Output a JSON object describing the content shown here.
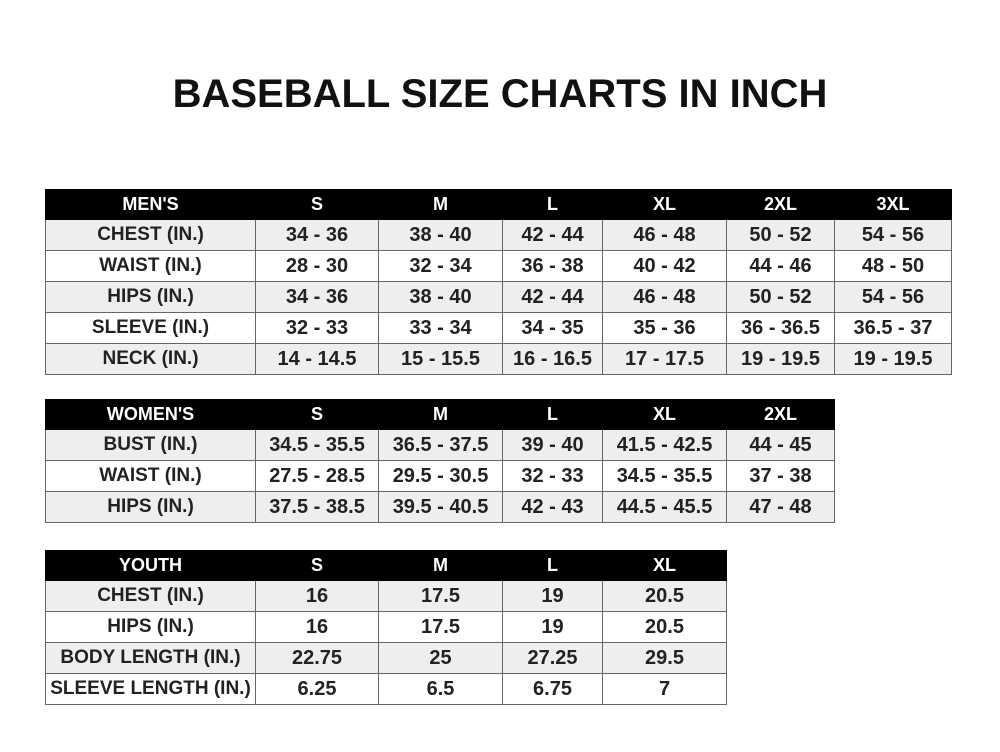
{
  "title": "BASEBALL SIZE CHARTS IN INCH",
  "colors": {
    "header_bg": "#000000",
    "header_text": "#ffffff",
    "alt_row": "#eeeeee"
  },
  "tables": {
    "men": {
      "headers": [
        "MEN'S",
        "S",
        "M",
        "L",
        "XL",
        "2XL",
        "3XL"
      ],
      "rows": [
        [
          "CHEST (IN.)",
          "34 - 36",
          "38 - 40",
          "42 - 44",
          "46 - 48",
          "50 - 52",
          "54 - 56"
        ],
        [
          "WAIST (IN.)",
          "28 - 30",
          "32 - 34",
          "36 - 38",
          "40 - 42",
          "44 - 46",
          "48 - 50"
        ],
        [
          "HIPS (IN.)",
          "34 - 36",
          "38 - 40",
          "42 - 44",
          "46 - 48",
          "50 - 52",
          "54 - 56"
        ],
        [
          "SLEEVE (IN.)",
          "32 - 33",
          "33 - 34",
          "34 - 35",
          "35 - 36",
          "36 - 36.5",
          "36.5 - 37"
        ],
        [
          "NECK (IN.)",
          "14 - 14.5",
          "15 - 15.5",
          "16 - 16.5",
          "17 - 17.5",
          "19 - 19.5",
          "19 - 19.5"
        ]
      ]
    },
    "women": {
      "headers": [
        "WOMEN'S",
        "S",
        "M",
        "L",
        "XL",
        "2XL"
      ],
      "rows": [
        [
          "BUST (IN.)",
          "34.5 - 35.5",
          "36.5 - 37.5",
          "39 - 40",
          "41.5 - 42.5",
          "44 - 45"
        ],
        [
          "WAIST (IN.)",
          "27.5 - 28.5",
          "29.5 - 30.5",
          "32 - 33",
          "34.5 - 35.5",
          "37 - 38"
        ],
        [
          "HIPS (IN.)",
          "37.5 - 38.5",
          "39.5 - 40.5",
          "42 - 43",
          "44.5 - 45.5",
          "47 - 48"
        ]
      ]
    },
    "youth": {
      "headers": [
        "YOUTH",
        "S",
        "M",
        "L",
        "XL"
      ],
      "rows": [
        [
          "CHEST (IN.)",
          "16",
          "17.5",
          "19",
          "20.5"
        ],
        [
          "HIPS (IN.)",
          "16",
          "17.5",
          "19",
          "20.5"
        ],
        [
          "BODY LENGTH (IN.)",
          "22.75",
          "25",
          "27.25",
          "29.5"
        ],
        [
          "SLEEVE LENGTH (IN.)",
          "6.25",
          "6.5",
          "6.75",
          "7"
        ]
      ]
    }
  }
}
